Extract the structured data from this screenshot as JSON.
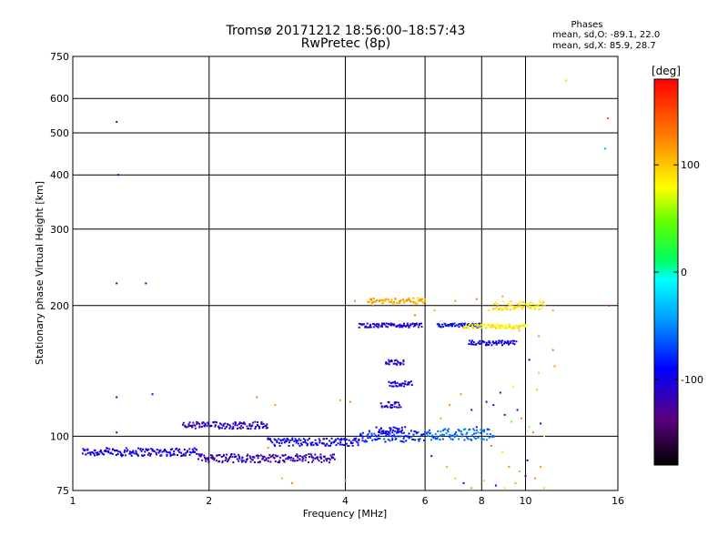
{
  "chart_data": {
    "type": "scatter",
    "title": "Tromsø 20171212 18:56:00–18:57:43",
    "subtitle": "RwPretec (8p)",
    "xlabel": "Frequency [MHz]",
    "ylabel": "Stationary phase Virtual Height [km]",
    "x_scale": "log",
    "y_scale": "log",
    "xlim": [
      1,
      16
    ],
    "ylim": [
      75,
      750
    ],
    "x_ticks": [
      1,
      2,
      4,
      6,
      8,
      10,
      16
    ],
    "y_ticks": [
      75,
      100,
      200,
      300,
      400,
      500,
      600,
      750
    ],
    "grid": true,
    "colorbar": {
      "label": "[deg]",
      "range": [
        -180,
        180
      ],
      "ticks": [
        100,
        0,
        -100
      ]
    },
    "phases_box": {
      "title": "Phases",
      "o_line": "mean, sd,O: -89.1, 22.0",
      "x_line": "mean, sd,X: 85.9, 28.7"
    },
    "traces": [
      {
        "name": "",
        "x_range": [
          1.05,
          1.9
        ],
        "height": 92,
        "phase": -100,
        "spread": 2
      },
      {
        "name": "",
        "x_range": [
          1.9,
          3.8
        ],
        "height": 89,
        "phase": -115,
        "spread": 2
      },
      {
        "name": "",
        "x_range": [
          1.75,
          2.7
        ],
        "height": 106,
        "phase": -110,
        "spread": 2
      },
      {
        "name": "",
        "x_range": [
          2.7,
          4.3
        ],
        "height": 97,
        "phase": -95,
        "spread": 2
      },
      {
        "name": "",
        "x_range": [
          4.3,
          6.0
        ],
        "height": 100,
        "phase": -80,
        "spread": 3
      },
      {
        "name": "",
        "x_range": [
          6.0,
          8.5
        ],
        "height": 101,
        "phase": -60,
        "spread": 3
      },
      {
        "name": "",
        "x_range": [
          4.3,
          5.9
        ],
        "height": 180,
        "phase": -110,
        "spread": 2
      },
      {
        "name": "",
        "x_range": [
          6.4,
          8.0
        ],
        "height": 180,
        "phase": -90,
        "spread": 2
      },
      {
        "name": "",
        "x_range": [
          7.3,
          10.0
        ],
        "height": 179,
        "phase": 85,
        "spread": 2
      },
      {
        "name": "",
        "x_range": [
          5.0,
          5.6
        ],
        "height": 132,
        "phase": -100,
        "spread": 2
      },
      {
        "name": "",
        "x_range": [
          4.9,
          5.4
        ],
        "height": 148,
        "phase": -105,
        "spread": 2
      },
      {
        "name": "",
        "x_range": [
          4.8,
          5.3
        ],
        "height": 118,
        "phase": -110,
        "spread": 2
      },
      {
        "name": "",
        "x_range": [
          4.7,
          5.4
        ],
        "height": 103,
        "phase": -95,
        "spread": 2
      },
      {
        "name": "",
        "x_range": [
          4.5,
          6.0
        ],
        "height": 205,
        "phase": 110,
        "spread": 3
      },
      {
        "name": "",
        "x_range": [
          7.5,
          9.5
        ],
        "height": 164,
        "phase": -100,
        "spread": 2
      },
      {
        "name": "",
        "x_range": [
          8.5,
          11.0
        ],
        "height": 200,
        "phase": 90,
        "spread": 5
      }
    ],
    "scatter": [
      [
        8.2,
        120,
        -120
      ],
      [
        8.5,
        118,
        -100
      ],
      [
        9.0,
        112,
        -140
      ],
      [
        9.3,
        108,
        50
      ],
      [
        9.6,
        115,
        -100
      ],
      [
        9.8,
        110,
        120
      ],
      [
        10.2,
        105,
        60
      ],
      [
        10.4,
        102,
        130
      ],
      [
        10.8,
        107,
        -120
      ],
      [
        11.0,
        100,
        70
      ],
      [
        8.8,
        126,
        -110
      ],
      [
        9.4,
        130,
        80
      ],
      [
        10.6,
        128,
        100
      ],
      [
        7.2,
        125,
        120
      ],
      [
        7.6,
        115,
        -120
      ],
      [
        6.8,
        118,
        120
      ],
      [
        6.5,
        110,
        110
      ],
      [
        7.8,
        105,
        -120
      ],
      [
        8.4,
        95,
        130
      ],
      [
        8.9,
        92,
        90
      ],
      [
        9.2,
        85,
        120
      ],
      [
        9.7,
        83,
        110
      ],
      [
        10.1,
        88,
        -100
      ],
      [
        10.5,
        80,
        120
      ],
      [
        6.2,
        90,
        -100
      ],
      [
        6.7,
        85,
        110
      ],
      [
        7.0,
        80,
        100
      ],
      [
        7.3,
        78,
        -110
      ],
      [
        7.6,
        76,
        120
      ],
      [
        8.1,
        79,
        100
      ],
      [
        8.6,
        77,
        -90
      ],
      [
        9.0,
        76,
        90
      ],
      [
        9.5,
        78,
        110
      ],
      [
        10.0,
        81,
        -120
      ],
      [
        11.0,
        76,
        95
      ],
      [
        10.8,
        85,
        120
      ],
      [
        10.7,
        140,
        100
      ],
      [
        10.2,
        150,
        -100
      ],
      [
        11.5,
        195,
        110
      ],
      [
        12.3,
        660,
        60
      ],
      [
        15.2,
        540,
        150
      ],
      [
        15.0,
        460,
        -40
      ],
      [
        15.3,
        200,
        160
      ],
      [
        1.25,
        530,
        -110
      ],
      [
        1.26,
        400,
        -100
      ],
      [
        1.25,
        225,
        -110
      ],
      [
        1.45,
        225,
        -110
      ],
      [
        1.25,
        123,
        -100
      ],
      [
        1.5,
        125,
        -110
      ],
      [
        1.25,
        102,
        -100
      ],
      [
        2.55,
        123,
        130
      ],
      [
        2.8,
        118,
        120
      ],
      [
        3.9,
        121,
        110
      ],
      [
        4.1,
        120,
        130
      ],
      [
        4.6,
        200,
        140
      ],
      [
        4.2,
        205,
        120
      ],
      [
        5.7,
        190,
        130
      ],
      [
        6.3,
        195,
        110
      ],
      [
        7.0,
        205,
        120
      ],
      [
        7.8,
        207,
        130
      ],
      [
        8.3,
        195,
        90
      ],
      [
        8.9,
        210,
        110
      ],
      [
        9.7,
        175,
        100
      ],
      [
        10.7,
        170,
        120
      ],
      [
        11.5,
        158,
        130
      ],
      [
        11.6,
        145,
        120
      ],
      [
        3.05,
        78,
        130
      ],
      [
        2.9,
        80,
        110
      ],
      [
        4.0,
        79,
        120
      ],
      [
        2.7,
        94,
        120
      ]
    ]
  }
}
